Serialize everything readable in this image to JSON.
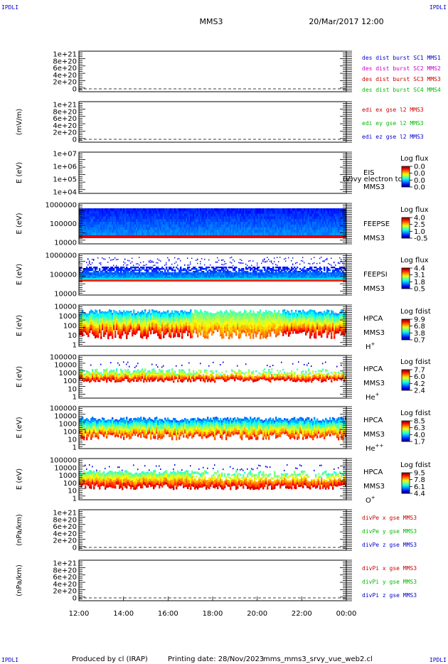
{
  "header": {
    "corner_tl": "IPDLI",
    "corner_tr": "IPDLI",
    "corner_bl": "IPDLI",
    "corner_br": "IPDLI",
    "mission": "MMS3",
    "datetime": "20/Mar/2017 12:00"
  },
  "footer": {
    "produced_by": "Produced by cl (IRAP)",
    "printing_date": "Printing date: 28/Nov/2023",
    "script": "mms_mms3_srvy_vue_web2.cl"
  },
  "colors": {
    "c_sc1": "#0000cc",
    "c_sc2": "#cc00cc",
    "c_sc3": "#cc0000",
    "c_sc4": "#00bb00"
  },
  "chart_data": {
    "type": "heatmap",
    "x_ticks": [
      "12:00",
      "14:00",
      "16:00",
      "18:00",
      "20:00",
      "22:00",
      "00:00"
    ],
    "x_range": [
      "12:00",
      "00:00"
    ],
    "panels": [
      {
        "kind": "line",
        "ylabel": "",
        "yticks": [
          "1e+21",
          "8e+20",
          "6e+20",
          "4e+20",
          "2e+20",
          "0"
        ],
        "legend": [
          {
            "text": "des dist burst SC1 MMS1",
            "color": "#0000cc"
          },
          {
            "text": "des dist burst SC2 MMS2",
            "color": "#cc00cc"
          },
          {
            "text": "des dist burst SC3 MMS3",
            "color": "#cc0000"
          },
          {
            "text": "des dist burst SC4 MMS4",
            "color": "#00bb00"
          }
        ]
      },
      {
        "kind": "line",
        "ylabel": "(mV/m)",
        "yticks": [
          "1e+21",
          "8e+20",
          "6e+20",
          "4e+20",
          "2e+20",
          "0"
        ],
        "legend": [
          {
            "text": "edi ex gse l2 MMS3",
            "color": "#cc0000"
          },
          {
            "text": "edi ey gse l2 MMS3",
            "color": "#00bb00"
          },
          {
            "text": "edi ez gse l2 MMS3",
            "color": "#0000cc"
          }
        ]
      },
      {
        "kind": "spec",
        "ylabel": "E (eV)",
        "yticks": [
          "1e+07",
          "1e+06",
          "1e+05",
          "1e+04"
        ],
        "instrument": "EIS",
        "sc": "MMS3",
        "extra": "(V)vy electron tc",
        "cb_title": "Log flux",
        "cb_ticks": [
          "0.0",
          "0.0",
          "0.0",
          "0.0"
        ],
        "fill": "none"
      },
      {
        "kind": "spec",
        "ylabel": "E (eV)",
        "yticks": [
          "1000000",
          "100000",
          "10000"
        ],
        "instrument": "FEEPSE",
        "sc": "MMS3",
        "cb_title": "Log flux",
        "cb_ticks": [
          "4.0",
          "2.5",
          "1.0",
          "-0.5"
        ],
        "fill": "feepse"
      },
      {
        "kind": "spec",
        "ylabel": "E (eV)",
        "yticks": [
          "1000000",
          "100000",
          "10000"
        ],
        "instrument": "FEEPSI",
        "sc": "MMS3",
        "cb_title": "Log flux",
        "cb_ticks": [
          "4.4",
          "3.1",
          "1.8",
          "0.5"
        ],
        "fill": "feepsi"
      },
      {
        "kind": "spec",
        "ylabel": "E (eV)",
        "yticks": [
          "10000",
          "1000",
          "100",
          "10",
          "1"
        ],
        "instrument": "HPCA",
        "sc": "MMS3",
        "species": "H",
        "species_sup": "+",
        "cb_title": "Log fdist",
        "cb_ticks": [
          "9.9",
          "6.8",
          "3.8",
          "0.7"
        ],
        "fill": "hplus"
      },
      {
        "kind": "spec",
        "ylabel": "E (eV)",
        "yticks": [
          "100000",
          "10000",
          "1000",
          "100",
          "10",
          "1"
        ],
        "instrument": "HPCA",
        "sc": "MMS3",
        "species": "He",
        "species_sup": "+",
        "cb_title": "Log fdist",
        "cb_ticks": [
          "7.7",
          "6.0",
          "4.2",
          "2.4"
        ],
        "fill": "heplus"
      },
      {
        "kind": "spec",
        "ylabel": "E (eV)",
        "yticks": [
          "100000",
          "10000",
          "1000",
          "100",
          "10",
          "1"
        ],
        "instrument": "HPCA",
        "sc": "MMS3",
        "species": "He",
        "species_sup": "++",
        "cb_title": "Log fdist",
        "cb_ticks": [
          "8.5",
          "6.3",
          "4.0",
          "1.7"
        ],
        "fill": "hepp"
      },
      {
        "kind": "spec",
        "ylabel": "E (eV)",
        "yticks": [
          "100000",
          "10000",
          "1000",
          "100",
          "10",
          "1"
        ],
        "instrument": "HPCA",
        "sc": "MMS3",
        "species": "O",
        "species_sup": "+",
        "cb_title": "Log fdist",
        "cb_ticks": [
          "9.5",
          "7.8",
          "6.1",
          "4.4"
        ],
        "fill": "oplus"
      },
      {
        "kind": "line",
        "ylabel": "(nPa/km)",
        "yticks": [
          "1e+21",
          "8e+20",
          "6e+20",
          "4e+20",
          "2e+20",
          "0"
        ],
        "legend": [
          {
            "text": "divPe x gse MMS3",
            "color": "#cc0000"
          },
          {
            "text": "divPe y gse MMS3",
            "color": "#00bb00"
          },
          {
            "text": "divPe z gse MMS3",
            "color": "#0000cc"
          }
        ]
      },
      {
        "kind": "line",
        "ylabel": "(nPa/km)",
        "yticks": [
          "1e+21",
          "8e+20",
          "6e+20",
          "4e+20",
          "2e+20",
          "0"
        ],
        "legend": [
          {
            "text": "divPi x gse MMS3",
            "color": "#cc0000"
          },
          {
            "text": "divPi y gse MMS3",
            "color": "#00bb00"
          },
          {
            "text": "divPi z gse MMS3",
            "color": "#0000cc"
          }
        ]
      }
    ]
  }
}
